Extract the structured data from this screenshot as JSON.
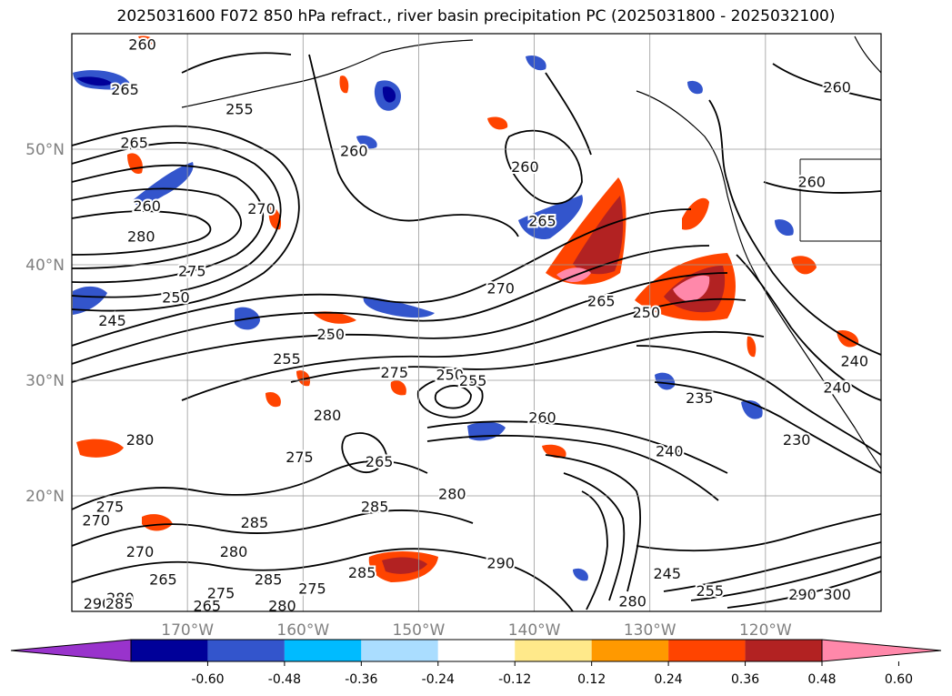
{
  "title": "2025031600 F072 850 hPa refract., river basin precipitation PC (2025031800 - 2025032100)",
  "map": {
    "lon_range": [
      -180,
      -110
    ],
    "lat_range": [
      10,
      60
    ],
    "lat_ticks": [
      {
        "value": 20,
        "label": "20°N"
      },
      {
        "value": 30,
        "label": "30°N"
      },
      {
        "value": 40,
        "label": "40°N"
      },
      {
        "value": 50,
        "label": "50°N"
      }
    ],
    "lon_ticks": [
      {
        "value": -170,
        "label": "170°W"
      },
      {
        "value": -160,
        "label": "160°W"
      },
      {
        "value": -150,
        "label": "150°W"
      },
      {
        "value": -140,
        "label": "140°W"
      },
      {
        "value": -130,
        "label": "130°W"
      },
      {
        "value": -120,
        "label": "120°W"
      }
    ],
    "grid": true,
    "contour_labels": [
      {
        "text": "260",
        "lon": -173.9,
        "lat": 59.1
      },
      {
        "text": "265",
        "lon": -175.4,
        "lat": 55.2
      },
      {
        "text": "255",
        "lon": -165.5,
        "lat": 53.5
      },
      {
        "text": "265",
        "lon": -174.6,
        "lat": 50.6
      },
      {
        "text": "260",
        "lon": -173.5,
        "lat": 45.1
      },
      {
        "text": "280",
        "lon": -174.0,
        "lat": 42.5
      },
      {
        "text": "275",
        "lon": -169.6,
        "lat": 39.5
      },
      {
        "text": "250",
        "lon": -171.0,
        "lat": 37.2
      },
      {
        "text": "245",
        "lon": -176.5,
        "lat": 35.2
      },
      {
        "text": "270",
        "lon": -163.6,
        "lat": 44.9
      },
      {
        "text": "260",
        "lon": -155.6,
        "lat": 49.9
      },
      {
        "text": "260",
        "lon": -140.8,
        "lat": 48.5
      },
      {
        "text": "265",
        "lon": -139.3,
        "lat": 43.8
      },
      {
        "text": "270",
        "lon": -142.9,
        "lat": 38.0
      },
      {
        "text": "265",
        "lon": -134.2,
        "lat": 36.9
      },
      {
        "text": "250",
        "lon": -130.3,
        "lat": 35.9
      },
      {
        "text": "250",
        "lon": -157.6,
        "lat": 34.0
      },
      {
        "text": "255",
        "lon": -161.4,
        "lat": 31.9
      },
      {
        "text": "275",
        "lon": -152.1,
        "lat": 30.7
      },
      {
        "text": "250",
        "lon": -147.3,
        "lat": 30.5
      },
      {
        "text": "255",
        "lon": -145.3,
        "lat": 30.0
      },
      {
        "text": "280",
        "lon": -157.9,
        "lat": 27.0
      },
      {
        "text": "260",
        "lon": -139.3,
        "lat": 26.8
      },
      {
        "text": "235",
        "lon": -125.7,
        "lat": 28.5
      },
      {
        "text": "240",
        "lon": -113.8,
        "lat": 29.4
      },
      {
        "text": "280",
        "lon": -174.1,
        "lat": 24.9
      },
      {
        "text": "275",
        "lon": -160.3,
        "lat": 23.4
      },
      {
        "text": "265",
        "lon": -153.4,
        "lat": 23.0
      },
      {
        "text": "240",
        "lon": -128.3,
        "lat": 23.9
      },
      {
        "text": "230",
        "lon": -117.3,
        "lat": 24.9
      },
      {
        "text": "260",
        "lon": -116.0,
        "lat": 47.2
      },
      {
        "text": "260",
        "lon": -113.8,
        "lat": 55.4
      },
      {
        "text": "280",
        "lon": -147.1,
        "lat": 20.2
      },
      {
        "text": "270",
        "lon": -177.9,
        "lat": 17.9
      },
      {
        "text": "275",
        "lon": -176.7,
        "lat": 19.1
      },
      {
        "text": "285",
        "lon": -164.2,
        "lat": 17.7
      },
      {
        "text": "285",
        "lon": -153.8,
        "lat": 19.1
      },
      {
        "text": "270",
        "lon": -174.1,
        "lat": 15.2
      },
      {
        "text": "280",
        "lon": -166.0,
        "lat": 15.2
      },
      {
        "text": "265",
        "lon": -172.1,
        "lat": 12.8
      },
      {
        "text": "285",
        "lon": -163.0,
        "lat": 12.8
      },
      {
        "text": "275",
        "lon": -159.2,
        "lat": 12.0
      },
      {
        "text": "285",
        "lon": -154.9,
        "lat": 13.4
      },
      {
        "text": "280",
        "lon": -175.8,
        "lat": 11.2
      },
      {
        "text": "290",
        "lon": -177.8,
        "lat": 10.7
      },
      {
        "text": "285",
        "lon": -175.9,
        "lat": 10.7
      },
      {
        "text": "275",
        "lon": -167.1,
        "lat": 11.6
      },
      {
        "text": "265",
        "lon": -168.3,
        "lat": 10.5
      },
      {
        "text": "280",
        "lon": -161.8,
        "lat": 10.5
      },
      {
        "text": "290",
        "lon": -142.9,
        "lat": 14.2
      },
      {
        "text": "245",
        "lon": -128.5,
        "lat": 13.3
      },
      {
        "text": "255",
        "lon": -124.8,
        "lat": 11.8
      },
      {
        "text": "280",
        "lon": -131.5,
        "lat": 10.9
      },
      {
        "text": "290",
        "lon": -116.8,
        "lat": 11.5
      },
      {
        "text": "300",
        "lon": -113.8,
        "lat": 11.5
      },
      {
        "text": "240",
        "lon": -112.3,
        "lat": 31.7
      }
    ]
  },
  "colorbar": {
    "colors": [
      "#9933cc",
      "#000099",
      "#3355cc",
      "#00bbff",
      "#aaddff",
      "#ffffff",
      "#ffe98a",
      "#ff9900",
      "#ff4400",
      "#b22222",
      "#ff88aa"
    ],
    "ticks": [
      "-0.60",
      "-0.48",
      "-0.36",
      "-0.24",
      "-0.12",
      "0.12",
      "0.24",
      "0.36",
      "0.48",
      "0.60"
    ]
  }
}
